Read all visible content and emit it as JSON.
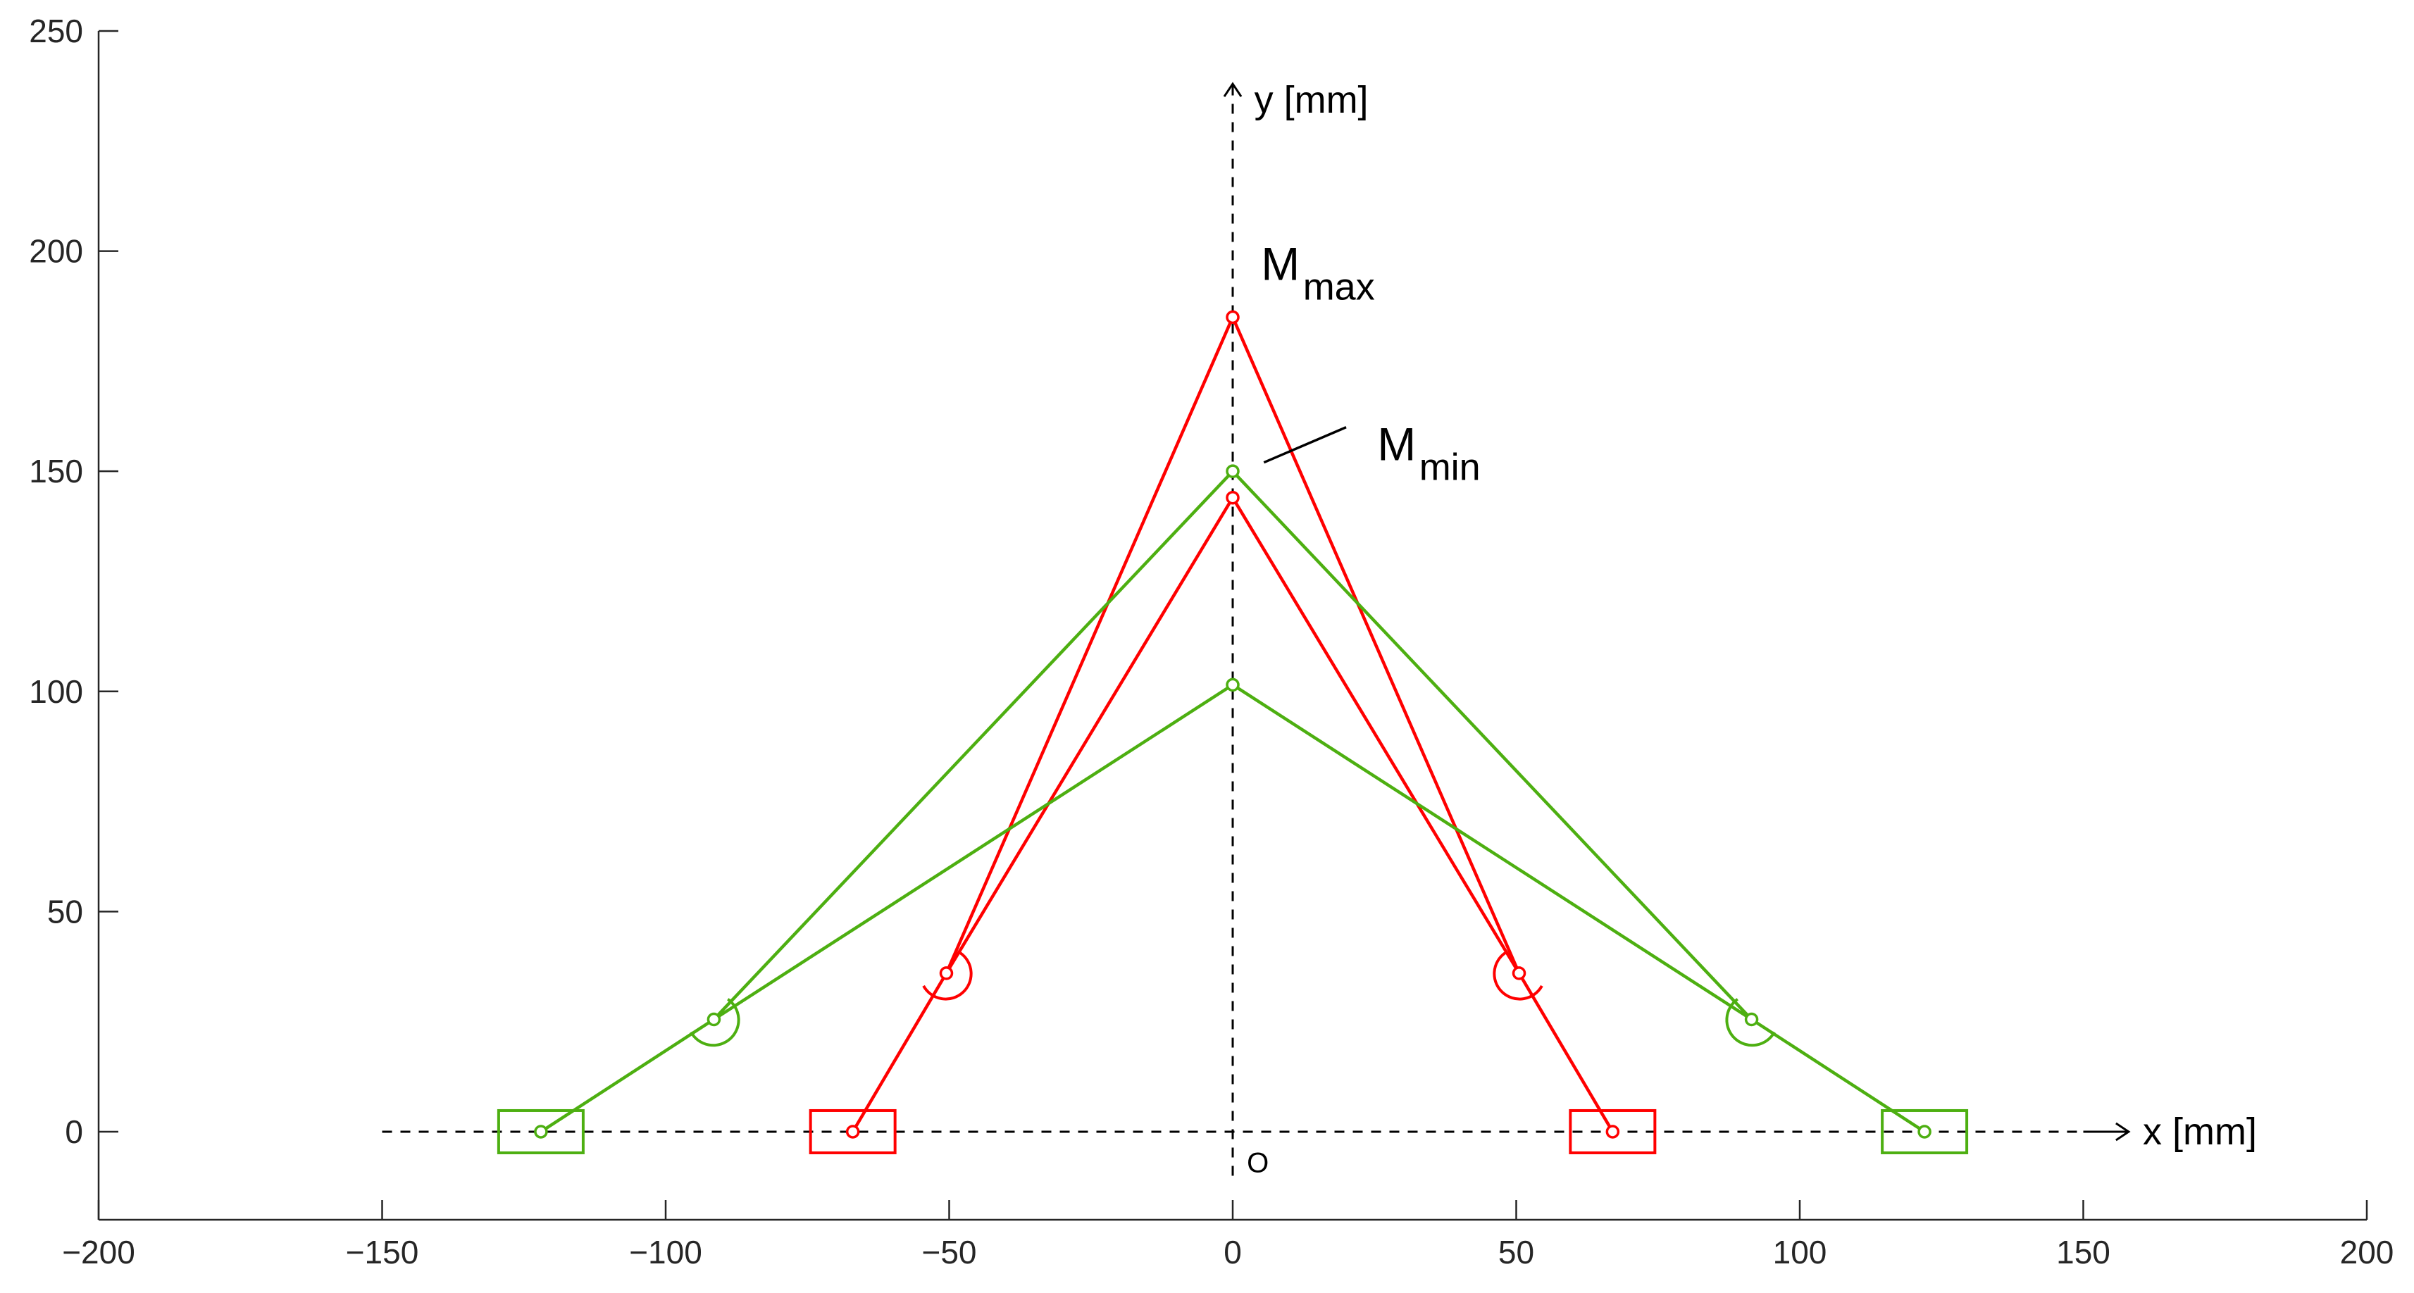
{
  "chart_data": {
    "type": "line",
    "title": "",
    "xlabel": "x [mm]",
    "ylabel": "y [mm]",
    "xlim": [
      -200,
      200
    ],
    "ylim": [
      -20,
      250
    ],
    "xticks": [
      -200,
      -150,
      -100,
      -50,
      0,
      50,
      100,
      150,
      200
    ],
    "yticks": [
      0,
      50,
      100,
      150,
      200,
      250
    ],
    "xtick_labels": [
      "−200",
      "−150",
      "−100",
      "−50",
      "0",
      "50",
      "100",
      "150",
      "200"
    ],
    "ytick_labels": [
      "0",
      "50",
      "100",
      "150",
      "200",
      "250"
    ],
    "grid": false,
    "origin_label": "O",
    "annotations": {
      "mmax": {
        "main": "M",
        "sub": "max"
      },
      "mmin": {
        "main": "M",
        "sub": "min"
      }
    },
    "colors": {
      "red": "#ff0000",
      "green": "#4daf11"
    },
    "series": [
      {
        "color": "red",
        "configuration": "max",
        "points": [
          [
            -67,
            0
          ],
          [
            -50.5,
            36
          ],
          [
            0,
            144
          ],
          [
            50.5,
            36
          ],
          [
            67,
            0
          ]
        ],
        "apex_links": [
          [
            [
              -50.5,
              36
            ],
            [
              0,
              185
            ]
          ],
          [
            [
              50.5,
              36
            ],
            [
              0,
              185
            ]
          ]
        ],
        "apex_point": [
          0,
          185
        ]
      },
      {
        "color": "green",
        "configuration": "min",
        "points": [
          [
            -122,
            0
          ],
          [
            -91.5,
            25.5
          ],
          [
            0,
            101.5
          ],
          [
            91.5,
            25.5
          ],
          [
            122,
            0
          ]
        ],
        "apex_links": [
          [
            [
              -91.5,
              25.5
            ],
            [
              0,
              150
            ]
          ],
          [
            [
              91.5,
              25.5
            ],
            [
              0,
              150
            ]
          ]
        ],
        "apex_point": [
          0,
          150
        ]
      }
    ]
  }
}
